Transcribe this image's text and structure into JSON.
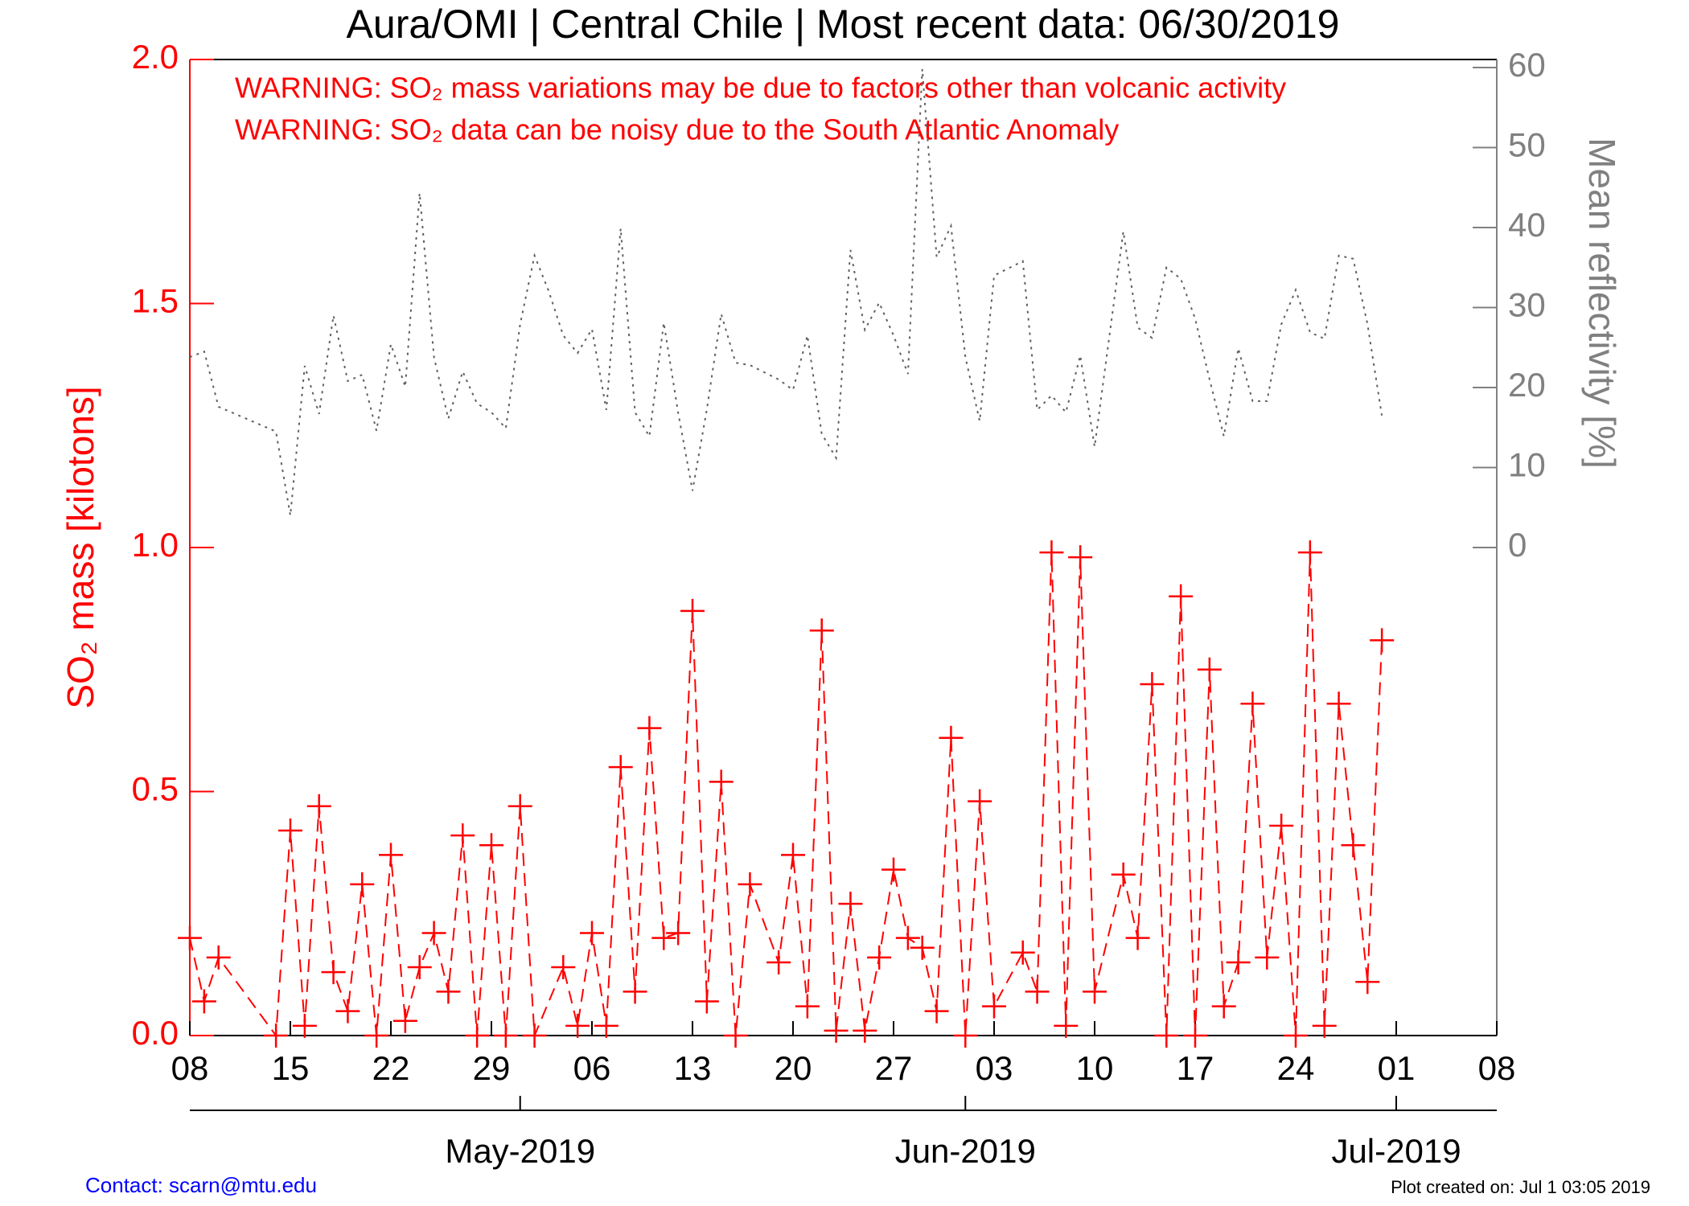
{
  "chart_data": {
    "type": "line",
    "title": "Aura/OMI | Central Chile | Most recent data: 06/30/2019",
    "annotations": [
      "WARNING: SO₂ mass variations may be due to factors other than volcanic activity",
      "WARNING: SO₂ data can be noisy due to the South Atlantic Anomaly"
    ],
    "y_label": "SO₂ mass [kilotons]",
    "y2_label": "Mean reflectivity [%]",
    "footer_left": "Contact: scarn@mtu.edu",
    "footer_right": "Plot created on: Jul  1 03:05 2019",
    "xlim": [
      "2019-04-08",
      "2019-07-08"
    ],
    "xticks": [
      {
        "value": "2019-04-08",
        "label": "08"
      },
      {
        "value": "2019-04-15",
        "label": "15"
      },
      {
        "value": "2019-04-22",
        "label": "22"
      },
      {
        "value": "2019-04-29",
        "label": "29"
      },
      {
        "value": "2019-05-06",
        "label": "06"
      },
      {
        "value": "2019-05-13",
        "label": "13"
      },
      {
        "value": "2019-05-20",
        "label": "20"
      },
      {
        "value": "2019-05-27",
        "label": "27"
      },
      {
        "value": "2019-06-03",
        "label": "03"
      },
      {
        "value": "2019-06-10",
        "label": "10"
      },
      {
        "value": "2019-06-17",
        "label": "17"
      },
      {
        "value": "2019-06-24",
        "label": "24"
      },
      {
        "value": "2019-07-01",
        "label": "01"
      },
      {
        "value": "2019-07-08",
        "label": "08"
      }
    ],
    "month_ticks": [
      {
        "value": "2019-05-01",
        "label": "May-2019"
      },
      {
        "value": "2019-06-01",
        "label": "Jun-2019"
      },
      {
        "value": "2019-07-01",
        "label": "Jul-2019"
      }
    ],
    "ylim": [
      0,
      2
    ],
    "yticks": [
      {
        "value": 0,
        "label": "0.0"
      },
      {
        "value": 0.5,
        "label": "0.5"
      },
      {
        "value": 1,
        "label": "1.0"
      },
      {
        "value": 1.5,
        "label": "1.5"
      },
      {
        "value": 2,
        "label": "2.0"
      }
    ],
    "y2lim": [
      -61,
      61
    ],
    "y2ticks": [
      0,
      10,
      20,
      30,
      40,
      50,
      60
    ],
    "series": [
      {
        "name": "SO₂ mass",
        "color": "#ff0000",
        "style": "dashed",
        "marker": "plus",
        "x": [
          "2019-04-08",
          "2019-04-09",
          "2019-04-10",
          "2019-04-14",
          "2019-04-15",
          "2019-04-16",
          "2019-04-17",
          "2019-04-18",
          "2019-04-19",
          "2019-04-20",
          "2019-04-21",
          "2019-04-22",
          "2019-04-23",
          "2019-04-24",
          "2019-04-25",
          "2019-04-26",
          "2019-04-27",
          "2019-04-28",
          "2019-04-29",
          "2019-04-30",
          "2019-05-01",
          "2019-05-02",
          "2019-05-04",
          "2019-05-05",
          "2019-05-06",
          "2019-05-07",
          "2019-05-08",
          "2019-05-09",
          "2019-05-10",
          "2019-05-11",
          "2019-05-12",
          "2019-05-13",
          "2019-05-14",
          "2019-05-15",
          "2019-05-16",
          "2019-05-17",
          "2019-05-19",
          "2019-05-20",
          "2019-05-21",
          "2019-05-22",
          "2019-05-23",
          "2019-05-24",
          "2019-05-25",
          "2019-05-26",
          "2019-05-27",
          "2019-05-28",
          "2019-05-29",
          "2019-05-30",
          "2019-05-31",
          "2019-06-01",
          "2019-06-02",
          "2019-06-03",
          "2019-06-05",
          "2019-06-06",
          "2019-06-07",
          "2019-06-08",
          "2019-06-09",
          "2019-06-10",
          "2019-06-12",
          "2019-06-13",
          "2019-06-14",
          "2019-06-15",
          "2019-06-16",
          "2019-06-17",
          "2019-06-18",
          "2019-06-19",
          "2019-06-20",
          "2019-06-21",
          "2019-06-22",
          "2019-06-23",
          "2019-06-24",
          "2019-06-25",
          "2019-06-26",
          "2019-06-27",
          "2019-06-28",
          "2019-06-29",
          "2019-06-30"
        ],
        "values": [
          0.2,
          0.07,
          0.16,
          0.0,
          0.42,
          0.02,
          0.47,
          0.13,
          0.05,
          0.31,
          0.0,
          0.37,
          0.03,
          0.14,
          0.21,
          0.09,
          0.41,
          0.0,
          0.39,
          0.0,
          0.47,
          0.0,
          0.14,
          0.02,
          0.21,
          0.02,
          0.55,
          0.09,
          0.63,
          0.2,
          0.21,
          0.87,
          0.07,
          0.52,
          0.0,
          0.31,
          0.15,
          0.37,
          0.06,
          0.83,
          0.01,
          0.27,
          0.01,
          0.16,
          0.34,
          0.2,
          0.18,
          0.05,
          0.61,
          0.0,
          0.48,
          0.06,
          0.17,
          0.09,
          0.99,
          0.02,
          0.98,
          0.09,
          0.33,
          0.2,
          0.72,
          0.0,
          0.9,
          0.0,
          0.75,
          0.06,
          0.15,
          0.68,
          0.16,
          0.43,
          0.0,
          0.99,
          0.02,
          0.68,
          0.39,
          0.11,
          0.81
        ]
      },
      {
        "name": "Mean reflectivity",
        "color": "#606060",
        "style": "dotted",
        "axis": "y2",
        "x": [
          "2019-04-08",
          "2019-04-09",
          "2019-04-10",
          "2019-04-14",
          "2019-04-15",
          "2019-04-16",
          "2019-04-17",
          "2019-04-18",
          "2019-04-19",
          "2019-04-20",
          "2019-04-21",
          "2019-04-22",
          "2019-04-23",
          "2019-04-24",
          "2019-04-25",
          "2019-04-26",
          "2019-04-27",
          "2019-04-28",
          "2019-04-29",
          "2019-04-30",
          "2019-05-01",
          "2019-05-02",
          "2019-05-03",
          "2019-05-04",
          "2019-05-05",
          "2019-05-06",
          "2019-05-07",
          "2019-05-08",
          "2019-05-09",
          "2019-05-10",
          "2019-05-11",
          "2019-05-12",
          "2019-05-13",
          "2019-05-14",
          "2019-05-15",
          "2019-05-16",
          "2019-05-17",
          "2019-05-18",
          "2019-05-19",
          "2019-05-20",
          "2019-05-21",
          "2019-05-22",
          "2019-05-23",
          "2019-05-24",
          "2019-05-25",
          "2019-05-26",
          "2019-05-27",
          "2019-05-28",
          "2019-05-29",
          "2019-05-30",
          "2019-05-31",
          "2019-06-01",
          "2019-06-02",
          "2019-06-03",
          "2019-06-05",
          "2019-06-06",
          "2019-06-07",
          "2019-06-08",
          "2019-06-09",
          "2019-06-10",
          "2019-06-12",
          "2019-06-13",
          "2019-06-14",
          "2019-06-15",
          "2019-06-16",
          "2019-06-17",
          "2019-06-18",
          "2019-06-19",
          "2019-06-20",
          "2019-06-21",
          "2019-06-22",
          "2019-06-23",
          "2019-06-24",
          "2019-06-25",
          "2019-06-26",
          "2019-06-27",
          "2019-06-28",
          "2019-06-29",
          "2019-06-30"
        ],
        "values": [
          23.8,
          24.5,
          17.6,
          14.5,
          4,
          22.7,
          16.7,
          29,
          20.8,
          21.6,
          14.6,
          25.4,
          20.1,
          44.3,
          23.8,
          16.1,
          22,
          18,
          16.9,
          14.9,
          27.9,
          36.5,
          32,
          26.5,
          24.3,
          27.3,
          17.2,
          39.9,
          16.9,
          13.9,
          28.1,
          16.9,
          7.1,
          17.3,
          29.2,
          23.1,
          22.8,
          21.9,
          21,
          19.7,
          26.5,
          14.2,
          11.2,
          37.2,
          27.2,
          30.6,
          26.5,
          21.7,
          59.8,
          36.3,
          40.2,
          23.8,
          15.8,
          34,
          35.8,
          17.2,
          19,
          16.9,
          24,
          12.6,
          39.5,
          27.5,
          26.2,
          35,
          33.6,
          28.6,
          21,
          13.9,
          24.9,
          18.3,
          18.3,
          27.9,
          32.2,
          26.9,
          26.1,
          36.5,
          36.1,
          27.9,
          16.5
        ]
      }
    ]
  }
}
